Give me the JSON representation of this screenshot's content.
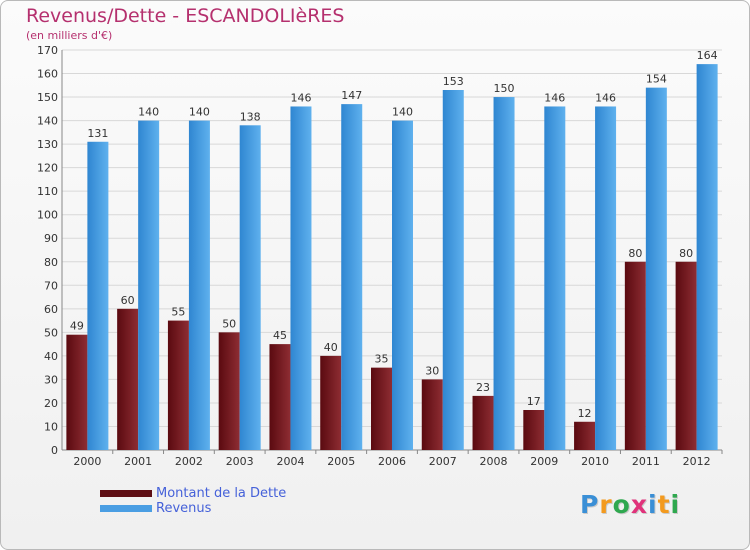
{
  "title": "Revenus/Dette - ESCANDOLIèRES",
  "subtitle": "(en milliers d'€)",
  "chart_data": {
    "type": "bar",
    "title": "Revenus/Dette - ESCANDOLIèRES",
    "ylabel": "(en milliers d'€)",
    "xlabel": "",
    "categories": [
      "2000",
      "2001",
      "2002",
      "2003",
      "2004",
      "2005",
      "2006",
      "2007",
      "2008",
      "2009",
      "2010",
      "2011",
      "2012"
    ],
    "series": [
      {
        "name": "Montant de la Dette",
        "color": "#7a1e24",
        "values": [
          49,
          60,
          55,
          50,
          45,
          40,
          35,
          30,
          23,
          17,
          12,
          80,
          80
        ]
      },
      {
        "name": "Revenus",
        "color": "#4da0e4",
        "values": [
          131,
          140,
          140,
          138,
          146,
          147,
          140,
          153,
          150,
          146,
          146,
          154,
          164
        ]
      }
    ],
    "ylim": [
      0,
      170
    ],
    "ytick_step": 10,
    "grid": true,
    "legend": "bottom-left"
  },
  "legend": {
    "debt_label": "Montant de la Dette",
    "revenue_label": "Revenus",
    "debt_color": "#5e0f14",
    "revenue_color": "#4a9ee3"
  },
  "logo": {
    "letters": [
      "P",
      "r",
      "o",
      "x",
      "i",
      "t",
      "i"
    ],
    "colors": [
      "#3a8fd6",
      "#f39a1e",
      "#2fa84f",
      "#e0327a",
      "#3a8fd6",
      "#f39a1e",
      "#2fa84f"
    ]
  }
}
